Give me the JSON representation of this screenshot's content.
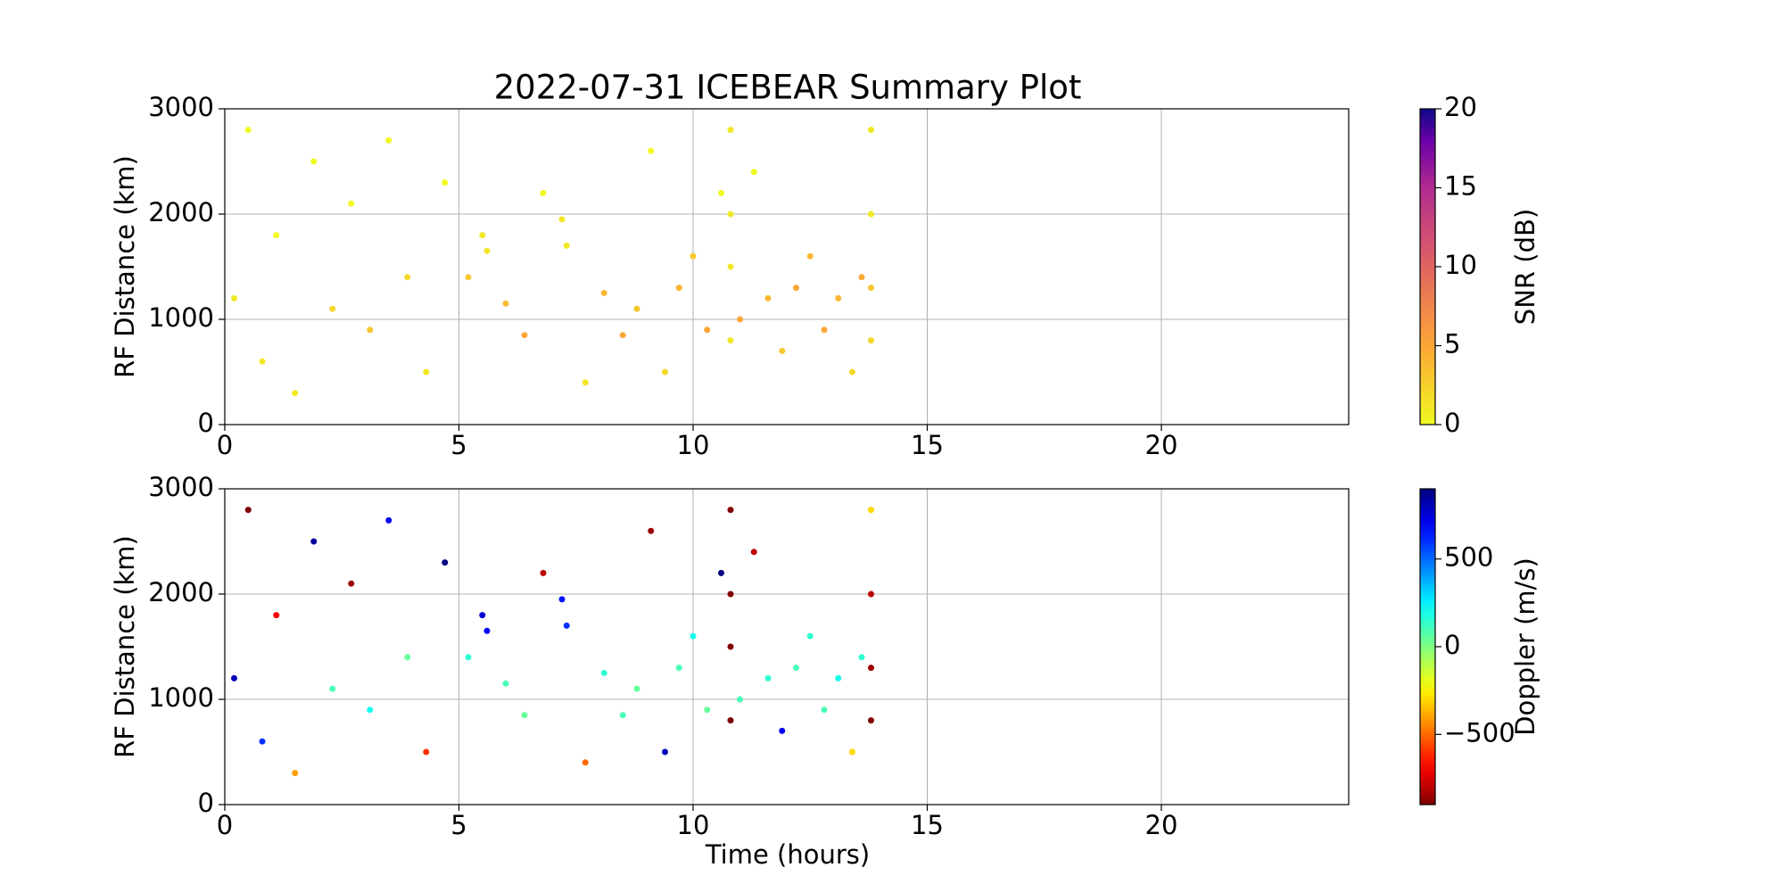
{
  "chart_data": [
    {
      "type": "scatter",
      "title": "2022-07-31 ICEBEAR Summary Plot",
      "ylabel": "RF Distance (km)",
      "xlim": [
        0,
        24
      ],
      "xticks": [
        0,
        5,
        10,
        15,
        20
      ],
      "ylim": [
        0,
        3000
      ],
      "yticks": [
        0,
        1000,
        2000,
        3000
      ],
      "grid": true,
      "x": [
        0.2,
        0.5,
        0.8,
        1.1,
        1.5,
        1.9,
        2.3,
        2.7,
        3.1,
        3.5,
        3.9,
        4.3,
        4.7,
        5.2,
        5.5,
        5.6,
        6.0,
        6.4,
        6.8,
        7.2,
        7.3,
        7.7,
        8.1,
        8.5,
        8.8,
        9.1,
        9.4,
        9.7,
        10.0,
        10.3,
        10.6,
        10.8,
        10.8,
        10.8,
        10.8,
        11.0,
        11.3,
        11.6,
        11.9,
        12.2,
        12.5,
        12.8,
        13.1,
        13.4,
        13.6,
        13.8,
        13.8,
        13.8,
        13.8
      ],
      "values": [
        1200,
        2800,
        600,
        1800,
        300,
        2500,
        1100,
        2100,
        900,
        2700,
        1400,
        500,
        2300,
        1400,
        1800,
        1650,
        1150,
        850,
        2200,
        1950,
        1700,
        400,
        1250,
        850,
        1100,
        2600,
        500,
        1300,
        1600,
        900,
        2200,
        2800,
        2000,
        1500,
        800,
        1000,
        2400,
        1200,
        700,
        1300,
        1600,
        900,
        1200,
        500,
        1400,
        2800,
        2000,
        1300,
        800
      ],
      "color_values": [
        1,
        0,
        1,
        0,
        1,
        0,
        2,
        0,
        3,
        0,
        2,
        1,
        0,
        3,
        1,
        1,
        4,
        5,
        0,
        1,
        1,
        1,
        4,
        5,
        3,
        0,
        2,
        4,
        3,
        5,
        0,
        1,
        1,
        1,
        1,
        5,
        0,
        4,
        3,
        5,
        4,
        5,
        4,
        2,
        5,
        1,
        1,
        3,
        2
      ],
      "colorbar": {
        "label": "SNR (dB)",
        "lim": [
          0,
          20
        ],
        "ticks": [
          0,
          5,
          10,
          15,
          20
        ],
        "colormap": "plasma_r"
      }
    },
    {
      "type": "scatter",
      "ylabel": "RF Distance (km)",
      "xlabel": "Time (hours)",
      "xlim": [
        0,
        24
      ],
      "xticks": [
        0,
        5,
        10,
        15,
        20
      ],
      "ylim": [
        0,
        3000
      ],
      "yticks": [
        0,
        1000,
        2000,
        3000
      ],
      "grid": true,
      "x": [
        0.2,
        0.5,
        0.8,
        1.1,
        1.5,
        1.9,
        2.3,
        2.7,
        3.1,
        3.5,
        3.9,
        4.3,
        4.7,
        5.2,
        5.5,
        5.6,
        6.0,
        6.4,
        6.8,
        7.2,
        7.3,
        7.7,
        8.1,
        8.5,
        8.8,
        9.1,
        9.4,
        9.7,
        10.0,
        10.3,
        10.6,
        10.8,
        10.8,
        10.8,
        10.8,
        11.0,
        11.3,
        11.6,
        11.9,
        12.2,
        12.5,
        12.8,
        13.1,
        13.4,
        13.6,
        13.8,
        13.8,
        13.8,
        13.8
      ],
      "values": [
        1200,
        2800,
        600,
        1800,
        300,
        2500,
        1100,
        2100,
        900,
        2700,
        1400,
        500,
        2300,
        1400,
        1800,
        1650,
        1150,
        850,
        2200,
        1950,
        1700,
        400,
        1250,
        850,
        1100,
        2600,
        500,
        1300,
        1600,
        900,
        2200,
        2800,
        2000,
        1500,
        800,
        1000,
        2400,
        1200,
        700,
        1300,
        1600,
        900,
        1200,
        500,
        1400,
        2800,
        2000,
        1300,
        800
      ],
      "color_values": [
        800,
        -900,
        600,
        -700,
        -400,
        850,
        100,
        -850,
        200,
        700,
        50,
        -600,
        900,
        150,
        750,
        700,
        100,
        50,
        -800,
        650,
        600,
        -500,
        150,
        100,
        50,
        -850,
        800,
        100,
        200,
        50,
        900,
        -900,
        -900,
        -900,
        -900,
        100,
        -800,
        150,
        700,
        100,
        150,
        100,
        200,
        -300,
        150,
        -300,
        -800,
        -850,
        -900
      ],
      "colorbar": {
        "label": "Doppler (m/s)",
        "lim": [
          -900,
          900
        ],
        "ticks": [
          {
            "value": -500,
            "label": "−500"
          },
          0,
          500
        ],
        "colormap": "jet_r"
      }
    }
  ]
}
